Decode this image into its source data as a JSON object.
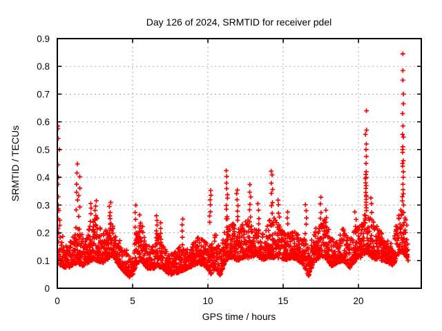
{
  "chart_data": {
    "type": "scatter",
    "title": "Day 126 of 2024, SRMTID for receiver pdel",
    "xlabel": "GPS time / hours",
    "ylabel": "SRMTID / TECUs",
    "xlim": [
      0,
      24.17
    ],
    "ylim": [
      0,
      0.9
    ],
    "xticks": [
      0,
      5,
      10,
      15,
      20
    ],
    "xtick_labels": [
      "0",
      "5",
      "10",
      "15",
      "20"
    ],
    "yticks": [
      0,
      0.1,
      0.2,
      0.3,
      0.4,
      0.5,
      0.6,
      0.7,
      0.8,
      0.9
    ],
    "ytick_labels": [
      "0",
      "0.1",
      "0.2",
      "0.3",
      "0.4",
      "0.5",
      "0.6",
      "0.7",
      "0.8",
      "0.9"
    ],
    "grid": true,
    "legend": "none",
    "marker": "plus",
    "colors": {
      "marker": "#ff0000",
      "grid": "#a8a8a8",
      "axis": "#000000",
      "background": "#ffffff",
      "text": "#000000"
    },
    "baseline_envelope": [
      [
        0.0,
        0.07,
        0.32
      ],
      [
        0.3,
        0.08,
        0.2
      ],
      [
        0.7,
        0.07,
        0.16
      ],
      [
        1.0,
        0.08,
        0.18
      ],
      [
        1.3,
        0.09,
        0.26
      ],
      [
        1.7,
        0.08,
        0.18
      ],
      [
        2.0,
        0.09,
        0.2
      ],
      [
        2.3,
        0.1,
        0.24
      ],
      [
        2.6,
        0.1,
        0.26
      ],
      [
        3.0,
        0.09,
        0.19
      ],
      [
        3.3,
        0.1,
        0.22
      ],
      [
        3.6,
        0.12,
        0.24
      ],
      [
        4.0,
        0.09,
        0.18
      ],
      [
        4.4,
        0.06,
        0.16
      ],
      [
        4.8,
        0.04,
        0.12
      ],
      [
        5.0,
        0.05,
        0.14
      ],
      [
        5.3,
        0.09,
        0.22
      ],
      [
        5.6,
        0.1,
        0.24
      ],
      [
        6.0,
        0.07,
        0.15
      ],
      [
        6.4,
        0.07,
        0.16
      ],
      [
        6.7,
        0.08,
        0.2
      ],
      [
        7.0,
        0.07,
        0.16
      ],
      [
        7.4,
        0.05,
        0.12
      ],
      [
        7.8,
        0.05,
        0.13
      ],
      [
        8.2,
        0.06,
        0.16
      ],
      [
        8.6,
        0.07,
        0.14
      ],
      [
        9.0,
        0.08,
        0.16
      ],
      [
        9.4,
        0.09,
        0.19
      ],
      [
        9.8,
        0.08,
        0.17
      ],
      [
        10.2,
        0.05,
        0.16
      ],
      [
        10.5,
        0.07,
        0.2
      ],
      [
        10.8,
        0.04,
        0.14
      ],
      [
        11.2,
        0.1,
        0.26
      ],
      [
        11.5,
        0.11,
        0.24
      ],
      [
        12.0,
        0.1,
        0.22
      ],
      [
        12.4,
        0.11,
        0.24
      ],
      [
        12.8,
        0.11,
        0.25
      ],
      [
        13.2,
        0.12,
        0.22
      ],
      [
        13.6,
        0.1,
        0.2
      ],
      [
        14.0,
        0.11,
        0.24
      ],
      [
        14.4,
        0.11,
        0.26
      ],
      [
        14.8,
        0.11,
        0.22
      ],
      [
        15.2,
        0.1,
        0.2
      ],
      [
        15.6,
        0.11,
        0.21
      ],
      [
        16.0,
        0.1,
        0.2
      ],
      [
        16.4,
        0.08,
        0.18
      ],
      [
        16.7,
        0.04,
        0.14
      ],
      [
        17.0,
        0.09,
        0.2
      ],
      [
        17.4,
        0.11,
        0.24
      ],
      [
        17.8,
        0.11,
        0.26
      ],
      [
        18.2,
        0.08,
        0.18
      ],
      [
        18.6,
        0.09,
        0.18
      ],
      [
        19.0,
        0.1,
        0.22
      ],
      [
        19.4,
        0.07,
        0.17
      ],
      [
        19.8,
        0.1,
        0.22
      ],
      [
        20.2,
        0.11,
        0.24
      ],
      [
        20.5,
        0.13,
        0.28
      ],
      [
        20.9,
        0.11,
        0.25
      ],
      [
        21.3,
        0.1,
        0.22
      ],
      [
        21.7,
        0.1,
        0.19
      ],
      [
        22.0,
        0.09,
        0.17
      ],
      [
        22.3,
        0.08,
        0.16
      ],
      [
        22.6,
        0.12,
        0.26
      ],
      [
        22.9,
        0.13,
        0.3
      ],
      [
        23.1,
        0.12,
        0.26
      ],
      [
        23.3,
        0.1,
        0.22
      ]
    ],
    "spike_clusters": [
      {
        "x": 1.3,
        "ymin": 0.28,
        "ymax": 0.445,
        "count": 6
      },
      {
        "x": 1.45,
        "ymin": 0.26,
        "ymax": 0.4,
        "count": 5
      },
      {
        "x": 2.2,
        "ymin": 0.22,
        "ymax": 0.31,
        "count": 5
      },
      {
        "x": 2.55,
        "ymin": 0.24,
        "ymax": 0.31,
        "count": 6
      },
      {
        "x": 3.5,
        "ymin": 0.22,
        "ymax": 0.305,
        "count": 7
      },
      {
        "x": 5.2,
        "ymin": 0.2,
        "ymax": 0.3,
        "count": 5
      },
      {
        "x": 5.5,
        "ymin": 0.18,
        "ymax": 0.26,
        "count": 5
      },
      {
        "x": 6.6,
        "ymin": 0.16,
        "ymax": 0.26,
        "count": 7
      },
      {
        "x": 6.9,
        "ymin": 0.15,
        "ymax": 0.24,
        "count": 5
      },
      {
        "x": 8.3,
        "ymin": 0.16,
        "ymax": 0.25,
        "count": 5
      },
      {
        "x": 10.15,
        "ymin": 0.24,
        "ymax": 0.35,
        "count": 7
      },
      {
        "x": 11.25,
        "ymin": 0.26,
        "ymax": 0.42,
        "count": 9
      },
      {
        "x": 11.95,
        "ymin": 0.24,
        "ymax": 0.36,
        "count": 7
      },
      {
        "x": 12.8,
        "ymin": 0.24,
        "ymax": 0.37,
        "count": 7
      },
      {
        "x": 13.35,
        "ymin": 0.21,
        "ymax": 0.3,
        "count": 5
      },
      {
        "x": 14.25,
        "ymin": 0.27,
        "ymax": 0.425,
        "count": 8
      },
      {
        "x": 14.7,
        "ymin": 0.23,
        "ymax": 0.32,
        "count": 5
      },
      {
        "x": 15.3,
        "ymin": 0.2,
        "ymax": 0.28,
        "count": 4
      },
      {
        "x": 16.5,
        "ymin": 0.2,
        "ymax": 0.3,
        "count": 5
      },
      {
        "x": 17.5,
        "ymin": 0.22,
        "ymax": 0.33,
        "count": 5
      },
      {
        "x": 17.85,
        "ymin": 0.2,
        "ymax": 0.28,
        "count": 4
      },
      {
        "x": 19.8,
        "ymin": 0.2,
        "ymax": 0.28,
        "count": 4
      },
      {
        "x": 20.85,
        "ymin": 0.22,
        "ymax": 0.33,
        "count": 5
      }
    ],
    "spike_columns": [
      {
        "x": 20.5,
        "values": [
          0.64,
          0.57,
          0.555,
          0.52,
          0.5,
          0.475,
          0.45,
          0.42,
          0.41,
          0.4,
          0.395,
          0.38,
          0.37,
          0.36,
          0.345,
          0.335,
          0.33,
          0.32,
          0.31,
          0.3,
          0.29,
          0.28
        ]
      },
      {
        "x": 22.95,
        "values": [
          0.845,
          0.785,
          0.75,
          0.7,
          0.665,
          0.63,
          0.585,
          0.555,
          0.545,
          0.51,
          0.5,
          0.49,
          0.46,
          0.45,
          0.44,
          0.42,
          0.4,
          0.375,
          0.355,
          0.34,
          0.33,
          0.315,
          0.3
        ]
      }
    ],
    "outlier_points": [
      [
        0.03,
        0.585
      ],
      [
        0.04,
        0.575
      ],
      [
        0.05,
        0.54
      ],
      [
        0.14,
        0.5
      ],
      [
        0.04,
        0.445
      ],
      [
        0.08,
        0.4
      ],
      [
        0.05,
        0.375
      ],
      [
        0.06,
        0.33
      ],
      [
        0.05,
        0.3
      ],
      [
        0.1,
        0.28
      ]
    ],
    "synth": {
      "seed": 126,
      "t_end": 23.3,
      "t_step": 0.0165,
      "power": 1.7
    }
  }
}
